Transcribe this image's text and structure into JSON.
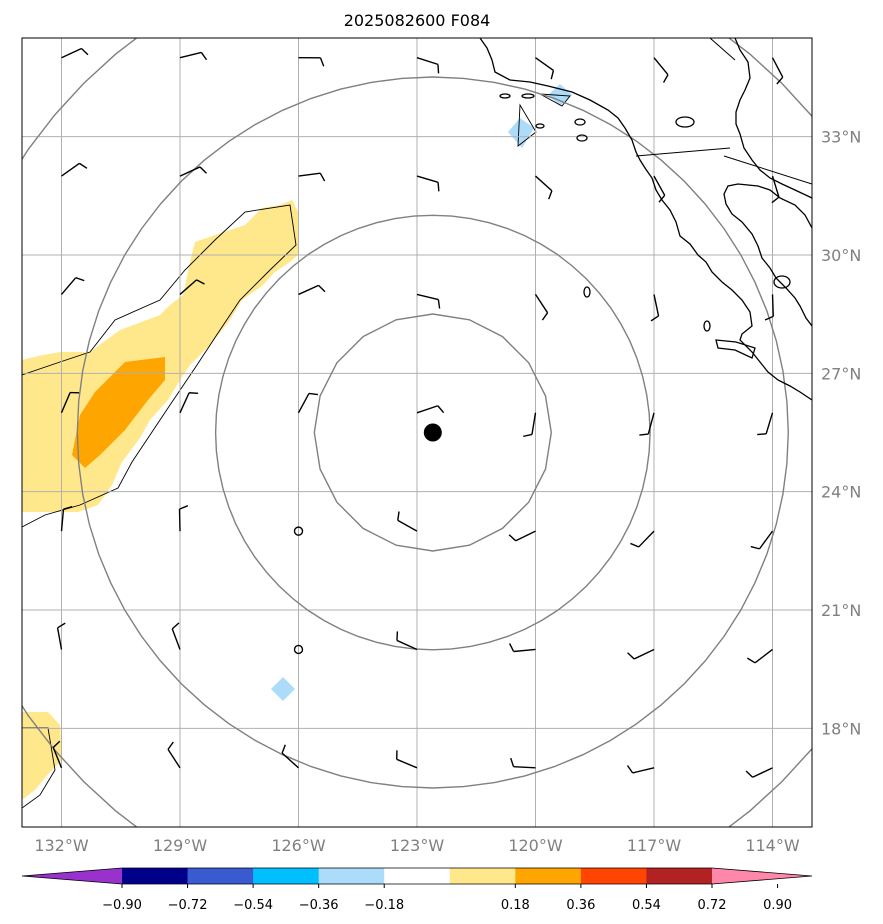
{
  "title": "2025082600 F084",
  "map": {
    "lon_range": [
      -133,
      -113
    ],
    "lat_range": [
      15.5,
      35.5
    ],
    "lon_ticks": [
      {
        "value": -132,
        "label": "132°W"
      },
      {
        "value": -129,
        "label": "129°W"
      },
      {
        "value": -126,
        "label": "126°W"
      },
      {
        "value": -123,
        "label": "123°W"
      },
      {
        "value": -120,
        "label": "120°W"
      },
      {
        "value": -117,
        "label": "117°W"
      },
      {
        "value": -114,
        "label": "114°W"
      }
    ],
    "lat_ticks": [
      {
        "value": 18,
        "label": "18°N"
      },
      {
        "value": 21,
        "label": "21°N"
      },
      {
        "value": 24,
        "label": "24°N"
      },
      {
        "value": 27,
        "label": "27°N"
      },
      {
        "value": 30,
        "label": "30°N"
      },
      {
        "value": 33,
        "label": "33°N"
      }
    ],
    "storm_center": {
      "lon": -122.6,
      "lat": 25.5
    },
    "range_rings_deg": [
      3.0,
      5.5,
      9.0,
      12.5
    ],
    "calm_markers": [
      {
        "lon": -126,
        "lat": 23
      },
      {
        "lon": -126,
        "lat": 20
      }
    ],
    "barb_grid": {
      "lons": [
        -132,
        -129,
        -126,
        -123,
        -120,
        -117,
        -114
      ],
      "lats": [
        17,
        20,
        23,
        26,
        29,
        32,
        35
      ]
    },
    "colors": {
      "ring": "#808080",
      "grid": "#b0b0b0",
      "coast": "#000000",
      "positive_low": "#ffe88c",
      "positive_mid": "#ffa500",
      "negative_low": "#acdcfa"
    }
  },
  "colorbar": {
    "ticks": [
      "−0.90",
      "−0.72",
      "−0.54",
      "−0.36",
      "−0.18",
      "0.18",
      "0.36",
      "0.54",
      "0.72",
      "0.90"
    ],
    "colors": [
      "#9932cc",
      "#00008b",
      "#3a5bd0",
      "#00bfff",
      "#acdcfa",
      "#ffffff",
      "#ffe88c",
      "#ffa500",
      "#ff4500",
      "#b22222",
      "#ff88aa"
    ]
  }
}
